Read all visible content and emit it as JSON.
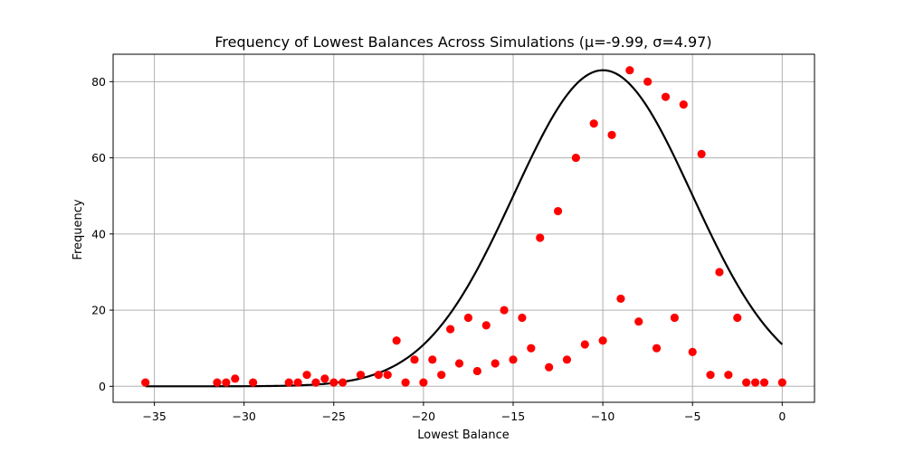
{
  "chart_data": {
    "type": "scatter",
    "title": "Frequency of Lowest Balances Across Simulations (μ=-9.99, σ=4.97)",
    "xlabel": "Lowest Balance",
    "ylabel": "Frequency",
    "xlim": [
      -37.3,
      1.8
    ],
    "ylim": [
      -4.2,
      87.2
    ],
    "xticks": [
      -35,
      -30,
      -25,
      -20,
      -15,
      -10,
      -5,
      0
    ],
    "xtick_labels": [
      "−35",
      "−30",
      "−25",
      "−20",
      "−15",
      "−10",
      "−5",
      "0"
    ],
    "yticks": [
      0,
      20,
      40,
      60,
      80
    ],
    "ytick_labels": [
      "0",
      "20",
      "40",
      "60",
      "80"
    ],
    "grid": true,
    "legend": "none",
    "series": [
      {
        "kind": "scatter",
        "color": "#ff0000",
        "points": [
          [
            -35.5,
            1
          ],
          [
            -31.5,
            1
          ],
          [
            -31.0,
            1
          ],
          [
            -30.5,
            2
          ],
          [
            -29.5,
            1
          ],
          [
            -27.5,
            1
          ],
          [
            -27.0,
            1
          ],
          [
            -26.5,
            3
          ],
          [
            -26.0,
            1
          ],
          [
            -25.5,
            2
          ],
          [
            -25.0,
            1
          ],
          [
            -24.5,
            1
          ],
          [
            -23.5,
            3
          ],
          [
            -22.5,
            3
          ],
          [
            -22.0,
            3
          ],
          [
            -21.5,
            12
          ],
          [
            -21.0,
            1
          ],
          [
            -20.5,
            7
          ],
          [
            -20.0,
            1
          ],
          [
            -19.5,
            7
          ],
          [
            -19.0,
            3
          ],
          [
            -18.5,
            15
          ],
          [
            -18.0,
            6
          ],
          [
            -17.5,
            18
          ],
          [
            -17.0,
            4
          ],
          [
            -16.5,
            16
          ],
          [
            -16.0,
            6
          ],
          [
            -15.5,
            20
          ],
          [
            -15.0,
            7
          ],
          [
            -14.5,
            18
          ],
          [
            -14.0,
            10
          ],
          [
            -13.5,
            39
          ],
          [
            -13.0,
            5
          ],
          [
            -12.5,
            46
          ],
          [
            -12.0,
            7
          ],
          [
            -11.5,
            60
          ],
          [
            -11.0,
            11
          ],
          [
            -10.5,
            69
          ],
          [
            -10.0,
            12
          ],
          [
            -9.5,
            66
          ],
          [
            -9.0,
            23
          ],
          [
            -8.5,
            83
          ],
          [
            -8.0,
            17
          ],
          [
            -7.5,
            80
          ],
          [
            -7.0,
            10
          ],
          [
            -6.5,
            76
          ],
          [
            -6.0,
            18
          ],
          [
            -5.5,
            74
          ],
          [
            -5.0,
            9
          ],
          [
            -4.5,
            61
          ],
          [
            -4.0,
            3
          ],
          [
            -3.5,
            30
          ],
          [
            -3.0,
            3
          ],
          [
            -2.5,
            18
          ],
          [
            -2.0,
            1
          ],
          [
            -1.5,
            1
          ],
          [
            -1.0,
            1
          ],
          [
            0.0,
            1
          ]
        ]
      },
      {
        "kind": "line",
        "color": "#000000",
        "curve": "normal",
        "mu": -9.99,
        "sigma": 4.97,
        "peak": 83,
        "x_range": [
          -35.5,
          0
        ]
      }
    ]
  }
}
